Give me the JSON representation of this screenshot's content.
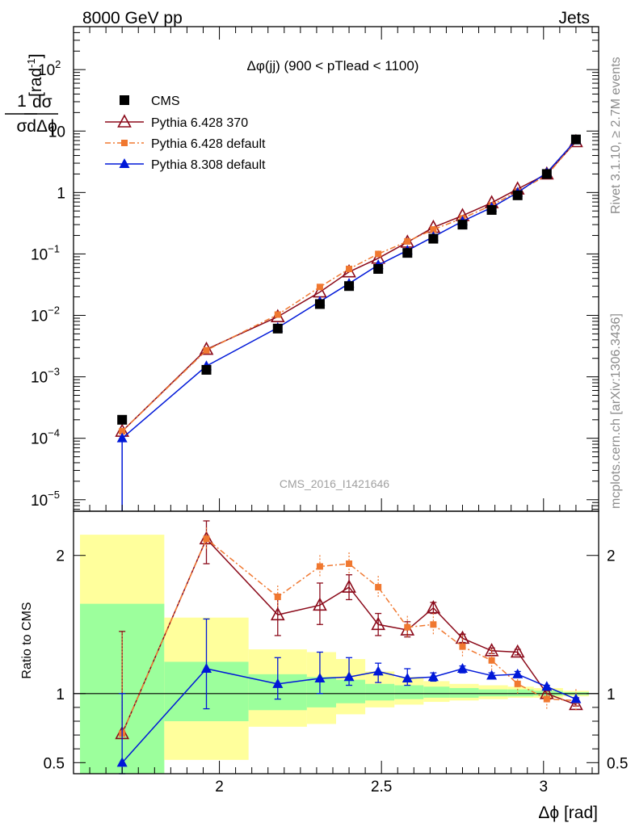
{
  "header": {
    "left": "8000 GeV pp",
    "right": "Jets"
  },
  "side_labels": {
    "rivet": "Rivet 3.1.10, ≥ 2.7M events",
    "mcplots": "mcplots.cern.ch [arXiv:1306.3436]"
  },
  "analysis_id": "CMS_2016_I1421646",
  "colors": {
    "cms": "#000000",
    "py6_370": "#8b0a1a",
    "py6_default": "#f07830",
    "py8": "#0018d8",
    "band_inner": "#9cff9c",
    "band_outer": "#ffff9c"
  },
  "chart_data": [
    {
      "type": "line",
      "panel": "main",
      "title": "Δφ(jj) (900 < pTlead <  1100)",
      "ylabel": "1/σ dσ/dΔφ [rad⁻¹]",
      "yscale": "log",
      "xlim": [
        1.55,
        3.17
      ],
      "ylim": [
        6.5e-06,
        500
      ],
      "yticks": [
        {
          "value": 1e-05,
          "label": "10",
          "exp": "−5"
        },
        {
          "value": 0.0001,
          "label": "10",
          "exp": "−4"
        },
        {
          "value": 0.001,
          "label": "10",
          "exp": "−3"
        },
        {
          "value": 0.01,
          "label": "10",
          "exp": "−2"
        },
        {
          "value": 0.1,
          "label": "10",
          "exp": "−1"
        },
        {
          "value": 1,
          "label": "1",
          "exp": ""
        },
        {
          "value": 10,
          "label": "10",
          "exp": ""
        },
        {
          "value": 100,
          "label": "10",
          "exp": "2"
        }
      ],
      "legend": [
        "CMS",
        "Pythia 6.428 370",
        "Pythia 6.428 default",
        "Pythia 8.308 default"
      ],
      "legend_position": "top-left",
      "x": [
        1.7,
        1.96,
        2.18,
        2.31,
        2.4,
        2.49,
        2.58,
        2.66,
        2.75,
        2.84,
        2.92,
        3.01,
        3.1
      ],
      "series": [
        {
          "name": "CMS",
          "values": [
            0.0002,
            0.0013,
            0.0061,
            0.0153,
            0.03,
            0.057,
            0.104,
            0.177,
            0.3,
            0.52,
            0.9,
            2.0,
            7.3
          ]
        },
        {
          "name": "Pythia 6.428 370",
          "values": [
            0.00013,
            0.0028,
            0.0095,
            0.024,
            0.051,
            0.085,
            0.155,
            0.27,
            0.42,
            0.68,
            1.14,
            2.0,
            6.7
          ]
        },
        {
          "name": "Pythia 6.428 default",
          "values": [
            0.00013,
            0.0027,
            0.0103,
            0.029,
            0.057,
            0.1,
            0.16,
            0.25,
            0.38,
            0.62,
            1.04,
            1.9,
            6.9
          ]
        },
        {
          "name": "Pythia 8.308 default",
          "values": [
            0.0001,
            0.0015,
            0.0063,
            0.0168,
            0.033,
            0.066,
            0.114,
            0.19,
            0.34,
            0.57,
            1.0,
            2.1,
            7.1
          ]
        }
      ]
    },
    {
      "type": "line",
      "panel": "ratio",
      "ylabel": "Ratio to CMS",
      "xlabel": "Δϕ [rad]",
      "xlim": [
        1.55,
        3.17
      ],
      "ylim": [
        0.42,
        2.32
      ],
      "yticks": [
        0.5,
        1,
        2
      ],
      "ytick_labels": [
        "0.5",
        "1",
        "2"
      ],
      "xticks": [
        2,
        2.5,
        3
      ],
      "xtick_labels": [
        "2",
        "2.5",
        "3"
      ],
      "bands": [
        {
          "x0": 1.57,
          "x1": 1.83,
          "inner": [
            0.32,
            1.65
          ],
          "outer": [
            0.32,
            2.15
          ]
        },
        {
          "x0": 1.83,
          "x1": 2.09,
          "inner": [
            0.8,
            1.23
          ],
          "outer": [
            0.52,
            1.55
          ]
        },
        {
          "x0": 2.09,
          "x1": 2.27,
          "inner": [
            0.88,
            1.14
          ],
          "outer": [
            0.76,
            1.32
          ]
        },
        {
          "x0": 2.27,
          "x1": 2.36,
          "inner": [
            0.9,
            1.12
          ],
          "outer": [
            0.78,
            1.3
          ]
        },
        {
          "x0": 2.36,
          "x1": 2.45,
          "inner": [
            0.93,
            1.1
          ],
          "outer": [
            0.85,
            1.25
          ]
        },
        {
          "x0": 2.45,
          "x1": 2.54,
          "inner": [
            0.95,
            1.07
          ],
          "outer": [
            0.9,
            1.16
          ]
        },
        {
          "x0": 2.54,
          "x1": 2.63,
          "inner": [
            0.96,
            1.06
          ],
          "outer": [
            0.92,
            1.12
          ]
        },
        {
          "x0": 2.63,
          "x1": 2.71,
          "inner": [
            0.97,
            1.05
          ],
          "outer": [
            0.94,
            1.09
          ]
        },
        {
          "x0": 2.71,
          "x1": 2.8,
          "inner": [
            0.97,
            1.04
          ],
          "outer": [
            0.95,
            1.07
          ]
        },
        {
          "x0": 2.8,
          "x1": 2.89,
          "inner": [
            0.98,
            1.03
          ],
          "outer": [
            0.96,
            1.06
          ]
        },
        {
          "x0": 2.89,
          "x1": 2.97,
          "inner": [
            0.98,
            1.03
          ],
          "outer": [
            0.97,
            1.05
          ]
        },
        {
          "x0": 2.97,
          "x1": 3.06,
          "inner": [
            0.985,
            1.02
          ],
          "outer": [
            0.97,
            1.04
          ]
        },
        {
          "x0": 3.06,
          "x1": 3.14,
          "inner": [
            0.99,
            1.01
          ],
          "outer": [
            0.98,
            1.02
          ]
        }
      ],
      "x": [
        1.7,
        1.96,
        2.18,
        2.31,
        2.4,
        2.49,
        2.58,
        2.66,
        2.75,
        2.84,
        2.92,
        3.01,
        3.1
      ],
      "series": [
        {
          "name": "Pythia 6.428 370",
          "values": [
            0.71,
            2.12,
            1.57,
            1.64,
            1.77,
            1.5,
            1.46,
            1.62,
            1.4,
            1.31,
            1.3,
            1.0,
            0.92
          ],
          "err": [
            [
              0.71,
              1.45
            ],
            [
              1.94,
              2.25
            ],
            [
              1.42,
              1.72
            ],
            [
              1.5,
              1.8
            ],
            [
              1.68,
              1.86
            ],
            [
              1.42,
              1.58
            ],
            [
              1.41,
              1.52
            ],
            [
              1.58,
              1.66
            ],
            [
              1.37,
              1.43
            ],
            [
              1.29,
              1.33
            ],
            [
              1.28,
              1.32
            ],
            [
              0.98,
              1.02
            ],
            [
              0.91,
              0.93
            ]
          ]
        },
        {
          "name": "Pythia 6.428 default",
          "values": [
            0.71,
            2.12,
            1.7,
            1.92,
            1.94,
            1.77,
            1.48,
            1.5,
            1.34,
            1.24,
            1.07,
            0.96,
            0.95
          ]
        },
        {
          "name": "Pythia 8.308 default",
          "values": [
            0.5,
            1.18,
            1.07,
            1.11,
            1.12,
            1.16,
            1.11,
            1.12,
            1.18,
            1.13,
            1.14,
            1.05,
            0.96
          ],
          "err": [
            [
              0.35,
              1.0
            ],
            [
              0.89,
              1.54
            ],
            [
              0.96,
              1.26
            ],
            [
              1.0,
              1.3
            ],
            [
              1.06,
              1.26
            ],
            [
              1.08,
              1.22
            ],
            [
              1.06,
              1.18
            ],
            [
              1.09,
              1.15
            ],
            [
              1.15,
              1.2
            ],
            [
              1.11,
              1.15
            ],
            [
              1.12,
              1.16
            ],
            [
              1.04,
              1.06
            ],
            [
              0.95,
              0.97
            ]
          ]
        }
      ]
    }
  ]
}
